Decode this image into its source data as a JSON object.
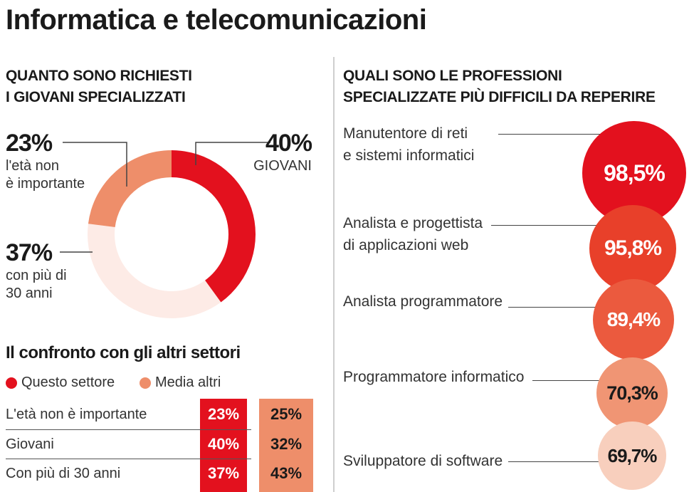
{
  "title": "Informatica e telecomunicazioni",
  "left": {
    "heading_line1": "QUANTO SONO RICHIESTI",
    "heading_line2": "I GIOVANI SPECIALIZZATI"
  },
  "right": {
    "heading_line1": "QUALI SONO LE PROFESSIONI",
    "heading_line2": "SPECIALIZZATE PIÙ DIFFICILI DA REPERIRE"
  },
  "chart_data": [
    {
      "type": "pie",
      "variant": "donut",
      "slices": [
        {
          "label_line1": "GIOVANI",
          "label_line2": "",
          "label_line3": "",
          "value_text": "40%",
          "value": 40,
          "color": "#e3111e"
        },
        {
          "label_line1": "con più di",
          "label_line2": "30 anni",
          "label_line3": "",
          "value_text": "37%",
          "value": 37,
          "color": "#fdebe6"
        },
        {
          "label_line1": "l'età non",
          "label_line2": "è importante",
          "label_line3": "",
          "value_text": "23%",
          "value": 23,
          "color": "#ee8e6a"
        }
      ]
    },
    {
      "type": "table",
      "title": "Il confronto con gli altri settori",
      "legend": [
        {
          "name": "Questo settore",
          "color": "#e3111e"
        },
        {
          "name": "Media altri",
          "color": "#ee8e6a"
        }
      ],
      "rows": [
        {
          "label": "L'età non è importante",
          "this_text": "23%",
          "other_text": "25%",
          "this": 23,
          "other": 25
        },
        {
          "label": "Giovani",
          "this_text": "40%",
          "other_text": "32%",
          "this": 40,
          "other": 32
        },
        {
          "label": "Con più di 30 anni",
          "this_text": "37%",
          "other_text": "43%",
          "this": 37,
          "other": 43
        }
      ]
    },
    {
      "type": "bubble",
      "items": [
        {
          "label_line1": "Manutentore di reti",
          "label_line2": "e sistemi informatici",
          "value_text": "98,5%",
          "value": 98.5,
          "color": "#e3111e",
          "text_color": "#ffffff"
        },
        {
          "label_line1": "Analista e progettista",
          "label_line2": "di applicazioni web",
          "value_text": "95,8%",
          "value": 95.8,
          "color": "#e8402a",
          "text_color": "#ffffff"
        },
        {
          "label_line1": "Analista programmatore",
          "label_line2": "",
          "value_text": "89,4%",
          "value": 89.4,
          "color": "#eb5a3e",
          "text_color": "#ffffff"
        },
        {
          "label_line1": "Programmatore informatico",
          "label_line2": "",
          "value_text": "70,3%",
          "value": 70.3,
          "color": "#f09574",
          "text_color": "#1a1a1a"
        },
        {
          "label_line1": "Sviluppatore di software",
          "label_line2": "",
          "value_text": "69,7%",
          "value": 69.7,
          "color": "#f8cfbd",
          "text_color": "#1a1a1a"
        }
      ]
    }
  ]
}
